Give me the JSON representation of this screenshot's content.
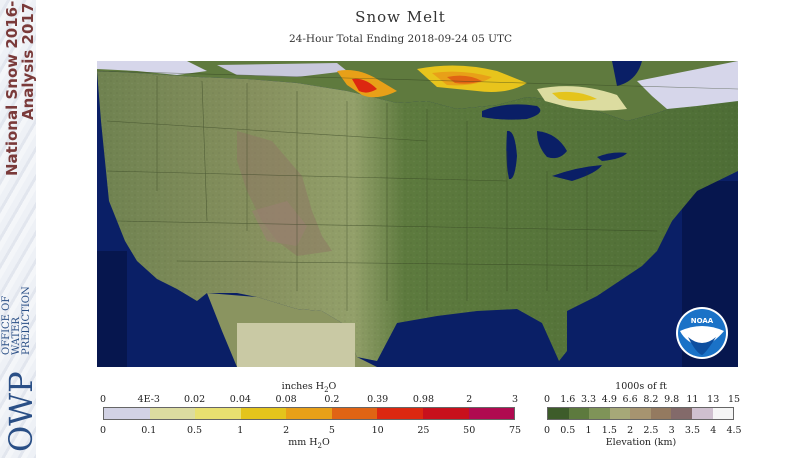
{
  "title": "Snow Melt",
  "subtitle": "24-Hour Total Ending 2018-09-24 05 UTC",
  "sidebar": {
    "line1": "National Snow 2016-",
    "line2": "Analysis 2017",
    "office": [
      "OFFICE OF",
      "WATER",
      "PREDICTION"
    ],
    "owp": "OWP"
  },
  "noaa_logo": "NOAA",
  "legend_melt": {
    "inches_title": "inches H",
    "inches_sub": "2",
    "inches_tail": "O",
    "inches_ticks": [
      "0",
      "4E-3",
      "0.02",
      "0.04",
      "0.08",
      "0.2",
      "0.39",
      "0.98",
      "2",
      "3"
    ],
    "mm_ticks": [
      "0",
      "0.1",
      "0.5",
      "1",
      "2",
      "5",
      "10",
      "25",
      "50",
      "75"
    ],
    "mm_title": "mm H",
    "mm_sub": "2",
    "mm_tail": "O",
    "colors": [
      "#d2d2e4",
      "#dcdca0",
      "#e8e070",
      "#e4c41c",
      "#e8a018",
      "#e06414",
      "#dc2810",
      "#c8101c",
      "#b00a50"
    ]
  },
  "legend_elev": {
    "ft_title": "1000s of ft",
    "ft_ticks": [
      "0",
      "1.6",
      "3.3",
      "4.9",
      "6.6",
      "8.2",
      "9.8",
      "11",
      "13",
      "15"
    ],
    "km_ticks": [
      "0",
      "0.5",
      "1",
      "1.5",
      "2",
      "2.5",
      "3",
      "3.5",
      "4",
      "4.5"
    ],
    "km_title": "Elevation (km)",
    "colors": [
      "#3d5c2a",
      "#5d7a3e",
      "#7f9458",
      "#a6a878",
      "#a69470",
      "#947a60",
      "#836a6a",
      "#cfc0cf",
      "#f5f5f5"
    ]
  }
}
